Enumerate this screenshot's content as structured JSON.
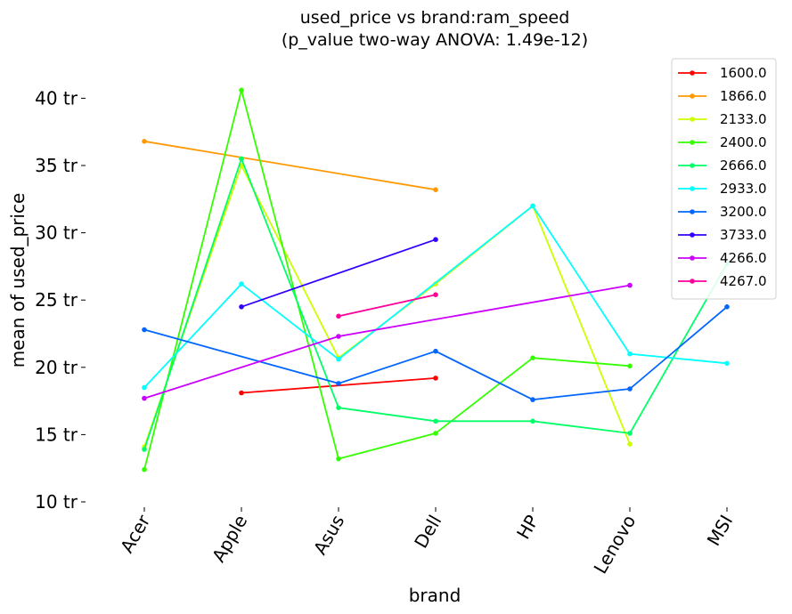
{
  "chart_data": {
    "type": "line",
    "title": "used_price vs brand:ram_speed",
    "subtitle": "(p_value two-way ANOVA: 1.49e-12)",
    "xlabel": "brand",
    "ylabel": "mean of used_price",
    "categories": [
      "Acer",
      "Apple",
      "Asus",
      "Dell",
      "HP",
      "Lenovo",
      "MSI"
    ],
    "y_ticks": [
      {
        "value": 10,
        "label": "10 tr"
      },
      {
        "value": 15,
        "label": "15 tr"
      },
      {
        "value": 20,
        "label": "20 tr"
      },
      {
        "value": 25,
        "label": "25 tr"
      },
      {
        "value": 30,
        "label": "30 tr"
      },
      {
        "value": 35,
        "label": "35 tr"
      },
      {
        "value": 40,
        "label": "40 tr"
      }
    ],
    "ylim": [
      10,
      41
    ],
    "grid": false,
    "legend_position": "top-right",
    "series": [
      {
        "name": "1600.0",
        "color": "#ff0000",
        "values": [
          null,
          18.1,
          null,
          19.2,
          null,
          null,
          null
        ]
      },
      {
        "name": "1866.0",
        "color": "#ff9900",
        "values": [
          36.8,
          null,
          null,
          33.2,
          null,
          null,
          null
        ]
      },
      {
        "name": "2133.0",
        "color": "#ccff00",
        "values": [
          14.1,
          35.0,
          20.7,
          26.2,
          32.0,
          14.3,
          null
        ]
      },
      {
        "name": "2400.0",
        "color": "#33ff00",
        "values": [
          12.4,
          40.6,
          13.2,
          15.1,
          20.7,
          20.1,
          null
        ]
      },
      {
        "name": "2666.0",
        "color": "#00ff66",
        "values": [
          13.9,
          35.5,
          17.0,
          16.0,
          16.0,
          15.1,
          27.7
        ]
      },
      {
        "name": "2933.0",
        "color": "#00ffff",
        "values": [
          18.5,
          26.2,
          20.6,
          null,
          32.0,
          21.0,
          20.3
        ]
      },
      {
        "name": "3200.0",
        "color": "#0066ff",
        "values": [
          22.8,
          null,
          18.8,
          21.2,
          17.6,
          18.4,
          24.5
        ]
      },
      {
        "name": "3733.0",
        "color": "#3300ff",
        "values": [
          null,
          24.5,
          null,
          29.5,
          null,
          null,
          null
        ]
      },
      {
        "name": "4266.0",
        "color": "#cc00ff",
        "values": [
          17.7,
          null,
          22.3,
          null,
          null,
          26.1,
          null
        ]
      },
      {
        "name": "4267.0",
        "color": "#ff0099",
        "values": [
          null,
          null,
          23.8,
          25.4,
          null,
          null,
          null
        ]
      }
    ]
  }
}
